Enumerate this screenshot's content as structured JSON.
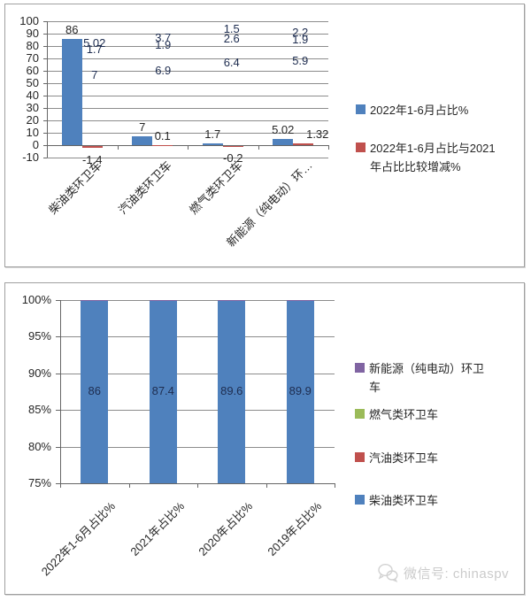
{
  "watermark": {
    "label": "微信号: chinaspv",
    "icon": "wechat-icon"
  },
  "colors": {
    "blue": "#4F81BD",
    "red": "#C0504D",
    "green": "#9BBB59",
    "purple": "#8064A2"
  },
  "chart_data": [
    {
      "type": "bar",
      "title": "",
      "categories": [
        "柴油类环卫车",
        "汽油类环卫车",
        "燃气类环卫车",
        "新能源（纯电动）环…"
      ],
      "series": [
        {
          "name": "2022年1-6月占比%",
          "color": "#4F81BD",
          "values": [
            86,
            7,
            1.7,
            5.02
          ],
          "labels": [
            "86",
            "7",
            "1.7",
            "5.02"
          ]
        },
        {
          "name": "2022年1-6月占比与2021年占比比较增减%",
          "color": "#C0504D",
          "values": [
            -1.4,
            0.1,
            -0.2,
            1.32
          ],
          "labels": [
            "-1.4",
            "0.1",
            "-0.2",
            "1.32"
          ]
        }
      ],
      "ylim": [
        -10,
        100
      ],
      "yticks": [
        100,
        90,
        80,
        70,
        60,
        50,
        40,
        30,
        20,
        10,
        0,
        -10
      ],
      "grid": true,
      "legend_position": "right",
      "legend": [
        {
          "label": "2022年1-6月占比%",
          "color": "#4F81BD"
        },
        {
          "label": "2022年1-6月占比与2021\n年占比比较增减%",
          "color": "#C0504D"
        }
      ]
    },
    {
      "type": "stacked-bar-100",
      "title": "",
      "categories": [
        "2022年1-6月占比%",
        "2021年占比%",
        "2020年占比%",
        "2019年占比%"
      ],
      "series": [
        {
          "name": "柴油类环卫车",
          "color": "#4F81BD",
          "values": [
            86,
            87.4,
            89.6,
            89.9
          ],
          "labels": [
            "86",
            "87.4",
            "89.6",
            "89.9"
          ]
        },
        {
          "name": "汽油类环卫车",
          "color": "#C0504D",
          "values": [
            7,
            6.9,
            6.4,
            5.9
          ],
          "labels": [
            "7",
            "6.9",
            "6.4",
            "5.9"
          ]
        },
        {
          "name": "燃气类环卫车",
          "color": "#9BBB59",
          "values": [
            1.7,
            1.9,
            2.6,
            1.9
          ],
          "labels": [
            "1.7",
            "1.9",
            "2.6",
            "1.9"
          ]
        },
        {
          "name": "新能源（纯电动）环卫车",
          "color": "#8064A2",
          "values": [
            5.02,
            3.7,
            1.5,
            2.2
          ],
          "labels": [
            "5.02",
            "3.7",
            "1.5",
            "2.2"
          ]
        }
      ],
      "ylim": [
        75,
        100
      ],
      "yticks": [
        100,
        95,
        90,
        85,
        80,
        75
      ],
      "ytick_labels": [
        "100%",
        "95%",
        "90%",
        "85%",
        "80%",
        "75%"
      ],
      "grid": true,
      "legend_position": "right",
      "legend": [
        {
          "label": "新能源（纯电动）环卫\n车",
          "color": "#8064A2"
        },
        {
          "label": "燃气类环卫车",
          "color": "#9BBB59"
        },
        {
          "label": "汽油类环卫车",
          "color": "#C0504D"
        },
        {
          "label": "柴油类环卫车",
          "color": "#4F81BD"
        }
      ]
    }
  ]
}
